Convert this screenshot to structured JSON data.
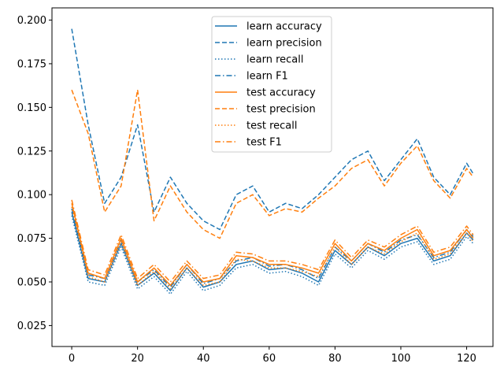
{
  "chart_data": {
    "type": "line",
    "title": "",
    "xlabel": "",
    "ylabel": "",
    "xlim": [
      -6,
      128
    ],
    "ylim": [
      0.013,
      0.207
    ],
    "xticks": [
      0,
      20,
      40,
      60,
      80,
      100,
      120
    ],
    "yticks": [
      0.025,
      0.05,
      0.075,
      0.1,
      0.125,
      0.15,
      0.175,
      0.2
    ],
    "ytick_labels": [
      "0.025",
      "0.050",
      "0.075",
      "0.100",
      "0.125",
      "0.150",
      "0.175",
      "0.200"
    ],
    "grid": false,
    "legend_position": "top-center",
    "x": [
      0,
      5,
      10,
      15,
      20,
      25,
      30,
      35,
      40,
      45,
      50,
      55,
      60,
      65,
      70,
      75,
      80,
      85,
      90,
      95,
      100,
      105,
      110,
      115,
      120,
      122
    ],
    "series": [
      {
        "name": "learn accuracy",
        "color": "#1f77b4",
        "style": "solid",
        "values": [
          0.09,
          0.052,
          0.05,
          0.072,
          0.048,
          0.055,
          0.045,
          0.058,
          0.047,
          0.05,
          0.06,
          0.062,
          0.057,
          0.058,
          0.055,
          0.05,
          0.068,
          0.06,
          0.07,
          0.065,
          0.072,
          0.075,
          0.062,
          0.065,
          0.078,
          0.074
        ]
      },
      {
        "name": "learn precision",
        "color": "#1f77b4",
        "style": "dashed",
        "values": [
          0.195,
          0.14,
          0.095,
          0.11,
          0.14,
          0.09,
          0.11,
          0.095,
          0.085,
          0.08,
          0.1,
          0.105,
          0.09,
          0.095,
          0.092,
          0.1,
          0.11,
          0.12,
          0.125,
          0.108,
          0.12,
          0.132,
          0.11,
          0.1,
          0.118,
          0.112
        ]
      },
      {
        "name": "learn recall",
        "color": "#1f77b4",
        "style": "dotted",
        "values": [
          0.088,
          0.05,
          0.048,
          0.07,
          0.046,
          0.053,
          0.043,
          0.056,
          0.045,
          0.048,
          0.058,
          0.06,
          0.055,
          0.056,
          0.053,
          0.048,
          0.066,
          0.058,
          0.068,
          0.063,
          0.07,
          0.073,
          0.06,
          0.063,
          0.076,
          0.072
        ]
      },
      {
        "name": "learn F1",
        "color": "#1f77b4",
        "style": "dashdot",
        "values": [
          0.092,
          0.054,
          0.052,
          0.074,
          0.05,
          0.057,
          0.047,
          0.06,
          0.049,
          0.052,
          0.062,
          0.064,
          0.059,
          0.06,
          0.057,
          0.052,
          0.07,
          0.062,
          0.072,
          0.067,
          0.074,
          0.077,
          0.064,
          0.067,
          0.08,
          0.076
        ]
      },
      {
        "name": "test accuracy",
        "color": "#ff7f0e",
        "style": "solid",
        "values": [
          0.095,
          0.055,
          0.052,
          0.075,
          0.05,
          0.058,
          0.048,
          0.06,
          0.05,
          0.052,
          0.065,
          0.064,
          0.06,
          0.06,
          0.058,
          0.055,
          0.072,
          0.062,
          0.072,
          0.068,
          0.075,
          0.08,
          0.065,
          0.068,
          0.08,
          0.075
        ]
      },
      {
        "name": "test precision",
        "color": "#ff7f0e",
        "style": "dashed",
        "values": [
          0.16,
          0.135,
          0.09,
          0.105,
          0.16,
          0.085,
          0.105,
          0.09,
          0.08,
          0.075,
          0.095,
          0.1,
          0.088,
          0.092,
          0.09,
          0.098,
          0.105,
          0.115,
          0.12,
          0.105,
          0.118,
          0.128,
          0.108,
          0.098,
          0.115,
          0.11
        ]
      },
      {
        "name": "test recall",
        "color": "#ff7f0e",
        "style": "dotted",
        "values": [
          0.093,
          0.053,
          0.05,
          0.073,
          0.048,
          0.056,
          0.046,
          0.058,
          0.048,
          0.05,
          0.063,
          0.062,
          0.058,
          0.058,
          0.056,
          0.053,
          0.07,
          0.06,
          0.07,
          0.066,
          0.073,
          0.078,
          0.063,
          0.066,
          0.078,
          0.073
        ]
      },
      {
        "name": "test F1",
        "color": "#ff7f0e",
        "style": "dashdot",
        "values": [
          0.097,
          0.057,
          0.054,
          0.077,
          0.052,
          0.06,
          0.05,
          0.062,
          0.052,
          0.054,
          0.067,
          0.066,
          0.062,
          0.062,
          0.06,
          0.057,
          0.074,
          0.064,
          0.074,
          0.07,
          0.077,
          0.082,
          0.067,
          0.07,
          0.082,
          0.077
        ]
      }
    ]
  }
}
